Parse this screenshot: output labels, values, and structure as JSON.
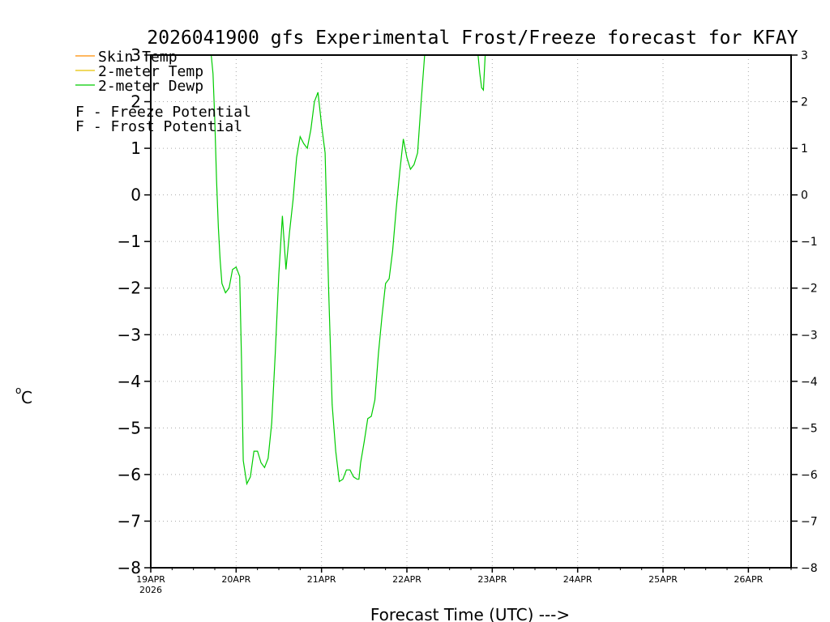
{
  "chart_data": {
    "type": "line",
    "title": "2026041900 gfs Experimental Frost/Freeze forecast for KFAY",
    "xlabel": "Forecast Time (UTC) --->",
    "ylabel": "°C",
    "ylabel_prefix": "o",
    "ylabel_unit": "C",
    "ylim": [
      -8,
      3
    ],
    "yticks": [
      3,
      2,
      1,
      0,
      -1,
      -2,
      -3,
      -4,
      -5,
      -6,
      -7,
      -8
    ],
    "ytick_labels_left": [
      "3",
      "2",
      "1",
      "0",
      "−1",
      "−2",
      "−3",
      "−4",
      "−5",
      "−6",
      "−7",
      "−8"
    ],
    "ytick_labels_right": [
      "3",
      "2",
      "1",
      "0",
      "−1",
      "−2",
      "−3",
      "−4",
      "−5",
      "−6",
      "−7",
      "−8"
    ],
    "xlim_hours": [
      0,
      180
    ],
    "xticks": [
      {
        "hour": 0,
        "label": "19APR",
        "sublabel": "2026"
      },
      {
        "hour": 24,
        "label": "20APR"
      },
      {
        "hour": 48,
        "label": "21APR"
      },
      {
        "hour": 72,
        "label": "22APR"
      },
      {
        "hour": 96,
        "label": "23APR"
      },
      {
        "hour": 120,
        "label": "24APR"
      },
      {
        "hour": 144,
        "label": "25APR"
      },
      {
        "hour": 168,
        "label": "26APR"
      }
    ],
    "grid": true,
    "legend": {
      "position": "top-left",
      "entries": [
        {
          "label": "Skin Temp",
          "color": "#ff8c00"
        },
        {
          "label": "2-meter Temp",
          "color": "#e6c200"
        },
        {
          "label": "2-meter Dewp",
          "color": "#00cc00"
        }
      ],
      "notes": [
        {
          "symbol": "F",
          "text": " - Freeze Potential",
          "color": "#cc0099"
        },
        {
          "symbol": "F",
          "text": " - Frost Potential",
          "color": "#3333ff"
        }
      ]
    },
    "series": [
      {
        "name": "2-meter Dewp",
        "color": "#00cc00",
        "segments": [
          [
            [
              17,
              3.0
            ],
            [
              17.5,
              2.6
            ],
            [
              18,
              1.6
            ],
            [
              18.5,
              0.3
            ],
            [
              19,
              -0.7
            ],
            [
              19.5,
              -1.4
            ],
            [
              20,
              -1.9
            ],
            [
              21,
              -2.1
            ],
            [
              22,
              -2.0
            ],
            [
              23,
              -1.6
            ],
            [
              24,
              -1.55
            ],
            [
              25,
              -1.75
            ],
            [
              25.5,
              -3.5
            ],
            [
              26,
              -5.7
            ],
            [
              27,
              -6.2
            ],
            [
              28,
              -6.05
            ],
            [
              29,
              -5.5
            ],
            [
              30,
              -5.5
            ],
            [
              31,
              -5.75
            ],
            [
              32,
              -5.85
            ],
            [
              33,
              -5.65
            ],
            [
              34,
              -4.9
            ],
            [
              35,
              -3.4
            ],
            [
              36,
              -1.7
            ],
            [
              37,
              -0.45
            ],
            [
              38,
              -1.6
            ],
            [
              39,
              -0.8
            ],
            [
              40,
              -0.1
            ],
            [
              41,
              0.8
            ],
            [
              42,
              1.25
            ],
            [
              43,
              1.1
            ],
            [
              44,
              1.0
            ],
            [
              45,
              1.4
            ],
            [
              46,
              2.0
            ],
            [
              47,
              2.2
            ],
            [
              48,
              1.5
            ],
            [
              49,
              0.9
            ],
            [
              50,
              -2.0
            ],
            [
              51,
              -4.5
            ],
            [
              52,
              -5.5
            ],
            [
              53,
              -6.15
            ],
            [
              54,
              -6.1
            ],
            [
              55,
              -5.9
            ],
            [
              56,
              -5.9
            ],
            [
              57,
              -6.05
            ],
            [
              58,
              -6.1
            ],
            [
              58.5,
              -6.1
            ],
            [
              59,
              -5.75
            ],
            [
              60,
              -5.3
            ],
            [
              61,
              -4.8
            ],
            [
              62,
              -4.75
            ],
            [
              63,
              -4.4
            ],
            [
              64,
              -3.4
            ],
            [
              65,
              -2.6
            ],
            [
              66,
              -1.9
            ],
            [
              67,
              -1.8
            ],
            [
              68,
              -1.2
            ],
            [
              69,
              -0.3
            ],
            [
              70,
              0.5
            ],
            [
              71,
              1.2
            ],
            [
              72,
              0.8
            ],
            [
              73,
              0.55
            ],
            [
              74,
              0.65
            ],
            [
              75,
              0.9
            ],
            [
              76,
              2.0
            ],
            [
              77,
              3.0
            ]
          ],
          [
            [
              92,
              3.0
            ],
            [
              92.5,
              2.6
            ],
            [
              93,
              2.3
            ],
            [
              93.5,
              2.25
            ],
            [
              94,
              3.0
            ]
          ]
        ]
      }
    ]
  }
}
